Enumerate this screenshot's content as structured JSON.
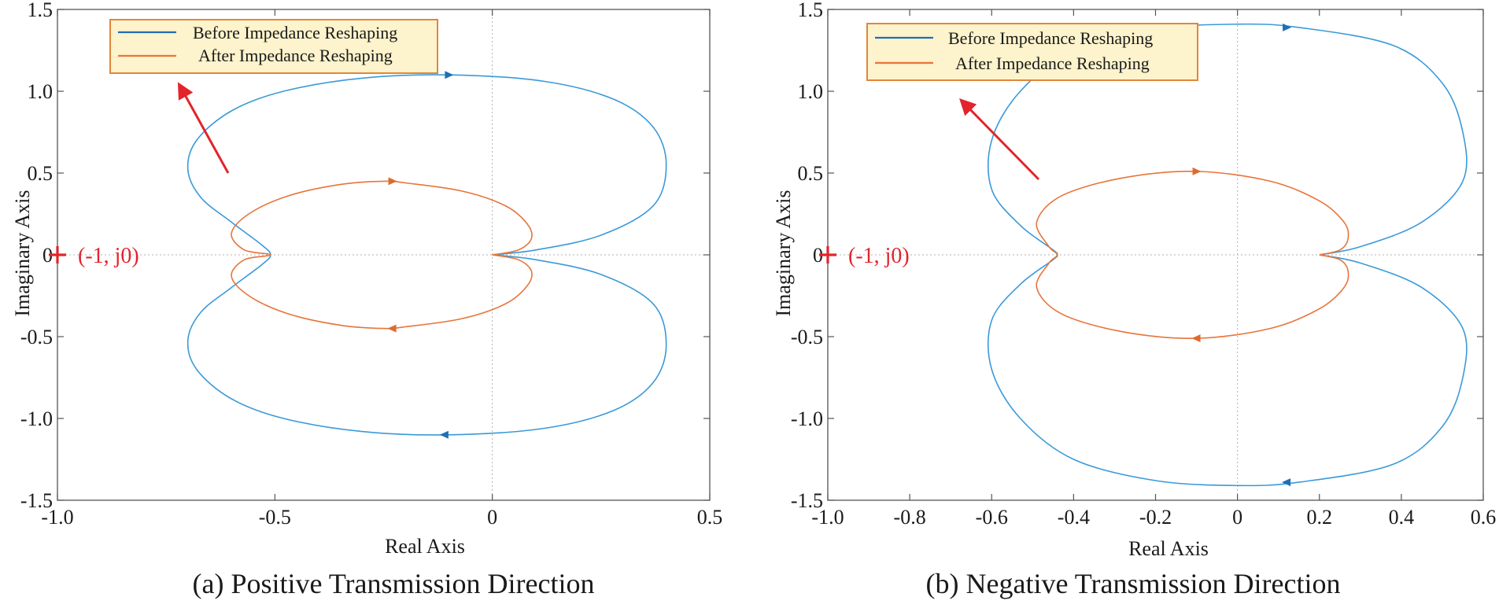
{
  "chart_data": [
    {
      "type": "line",
      "title": "(a) Positive Transmission Direction",
      "xlabel": "Real Axis",
      "ylabel": "Imaginary Axis",
      "xlim": [
        -1.0,
        0.5
      ],
      "ylim": [
        -1.5,
        1.5
      ],
      "xticks": [
        -1.0,
        -0.5,
        0,
        0.5
      ],
      "xtick_labels": [
        "-1.0",
        "-0.5",
        "0",
        "0.5"
      ],
      "yticks": [
        -1.5,
        -1.0,
        -0.5,
        0,
        0.5,
        1.0,
        1.5
      ],
      "ytick_labels": [
        "-1.5",
        "-1.0",
        "-0.5",
        "0",
        "0.5",
        "1.0",
        "1.5"
      ],
      "legend": [
        "Before Impedance Reshaping",
        "After Impedance Reshaping"
      ],
      "reference_point": {
        "x": -1,
        "y": 0,
        "label": "(-1, j0)"
      },
      "series": [
        {
          "name": "Before Impedance Reshaping",
          "color": "#3a9ad9",
          "points": [
            [
              0,
              0
            ],
            [
              0.1,
              0.03
            ],
            [
              0.25,
              0.12
            ],
            [
              0.37,
              0.3
            ],
            [
              0.4,
              0.55
            ],
            [
              0.37,
              0.78
            ],
            [
              0.28,
              0.95
            ],
            [
              0.12,
              1.06
            ],
            [
              -0.1,
              1.1
            ],
            [
              -0.3,
              1.08
            ],
            [
              -0.48,
              1.0
            ],
            [
              -0.6,
              0.88
            ],
            [
              -0.68,
              0.7
            ],
            [
              -0.7,
              0.52
            ],
            [
              -0.67,
              0.35
            ],
            [
              -0.6,
              0.2
            ],
            [
              -0.53,
              0.06
            ],
            [
              -0.51,
              0
            ],
            [
              -0.53,
              -0.06
            ],
            [
              -0.6,
              -0.2
            ],
            [
              -0.67,
              -0.35
            ],
            [
              -0.7,
              -0.52
            ],
            [
              -0.68,
              -0.7
            ],
            [
              -0.6,
              -0.88
            ],
            [
              -0.48,
              -1.0
            ],
            [
              -0.3,
              -1.08
            ],
            [
              -0.1,
              -1.1
            ],
            [
              0.12,
              -1.06
            ],
            [
              0.28,
              -0.95
            ],
            [
              0.37,
              -0.78
            ],
            [
              0.4,
              -0.55
            ],
            [
              0.37,
              -0.3
            ],
            [
              0.25,
              -0.12
            ],
            [
              0.1,
              -0.03
            ],
            [
              0,
              0
            ]
          ],
          "arrows": [
            {
              "x": -0.1,
              "y": 1.1
            },
            {
              "x": -0.11,
              "y": -1.1
            }
          ]
        },
        {
          "name": "After Impedance Reshaping",
          "color": "#e8743b",
          "points": [
            [
              0,
              0
            ],
            [
              0.06,
              0.03
            ],
            [
              0.09,
              0.1
            ],
            [
              0.08,
              0.19
            ],
            [
              0.03,
              0.3
            ],
            [
              -0.07,
              0.39
            ],
            [
              -0.2,
              0.44
            ],
            [
              -0.25,
              0.45
            ],
            [
              -0.35,
              0.43
            ],
            [
              -0.47,
              0.36
            ],
            [
              -0.56,
              0.25
            ],
            [
              -0.6,
              0.13
            ],
            [
              -0.57,
              0.03
            ],
            [
              -0.51,
              0
            ],
            [
              -0.57,
              -0.03
            ],
            [
              -0.6,
              -0.13
            ],
            [
              -0.56,
              -0.25
            ],
            [
              -0.47,
              -0.36
            ],
            [
              -0.35,
              -0.43
            ],
            [
              -0.25,
              -0.45
            ],
            [
              -0.2,
              -0.44
            ],
            [
              -0.07,
              -0.39
            ],
            [
              0.03,
              -0.3
            ],
            [
              0.08,
              -0.19
            ],
            [
              0.09,
              -0.1
            ],
            [
              0.06,
              -0.03
            ],
            [
              0,
              0
            ]
          ],
          "arrows": [
            {
              "x": -0.23,
              "y": 0.45
            },
            {
              "x": -0.23,
              "y": -0.45
            }
          ]
        }
      ]
    },
    {
      "type": "line",
      "title": "(b) Negative Transmission Direction",
      "xlabel": "Real Axis",
      "ylabel": "Imaginary Axis",
      "xlim": [
        -1.0,
        0.6
      ],
      "ylim": [
        -1.5,
        1.5
      ],
      "xticks": [
        -1.0,
        -0.8,
        -0.6,
        -0.4,
        -0.2,
        0,
        0.2,
        0.4,
        0.6
      ],
      "xtick_labels": [
        "-1.0",
        "-0.8",
        "-0.6",
        "-0.4",
        "-0.2",
        "0",
        "0.2",
        "0.4",
        "0.6"
      ],
      "yticks": [
        -1.5,
        -1.0,
        -0.5,
        0,
        0.5,
        1.0,
        1.5
      ],
      "ytick_labels": [
        "-1.5",
        "-1.0",
        "-0.5",
        "0",
        "0.5",
        "1.0",
        "1.5"
      ],
      "legend": [
        "Before Impedance Reshaping",
        "After Impedance Reshaping"
      ],
      "reference_point": {
        "x": -1,
        "y": 0,
        "label": "(-1, j0)"
      },
      "series": [
        {
          "name": "Before Impedance Reshaping",
          "color": "#3a9ad9",
          "points": [
            [
              0.2,
              0
            ],
            [
              0.3,
              0.05
            ],
            [
              0.45,
              0.2
            ],
            [
              0.55,
              0.45
            ],
            [
              0.55,
              0.75
            ],
            [
              0.5,
              1.05
            ],
            [
              0.38,
              1.28
            ],
            [
              0.15,
              1.39
            ],
            [
              0.0,
              1.41
            ],
            [
              -0.2,
              1.38
            ],
            [
              -0.4,
              1.25
            ],
            [
              -0.53,
              1.0
            ],
            [
              -0.6,
              0.7
            ],
            [
              -0.6,
              0.4
            ],
            [
              -0.53,
              0.18
            ],
            [
              -0.45,
              0.03
            ],
            [
              -0.44,
              0
            ],
            [
              -0.45,
              -0.03
            ],
            [
              -0.53,
              -0.18
            ],
            [
              -0.6,
              -0.4
            ],
            [
              -0.6,
              -0.7
            ],
            [
              -0.53,
              -1.0
            ],
            [
              -0.4,
              -1.25
            ],
            [
              -0.2,
              -1.38
            ],
            [
              0.0,
              -1.41
            ],
            [
              0.15,
              -1.39
            ],
            [
              0.38,
              -1.28
            ],
            [
              0.5,
              -1.05
            ],
            [
              0.55,
              -0.75
            ],
            [
              0.55,
              -0.45
            ],
            [
              0.45,
              -0.2
            ],
            [
              0.3,
              -0.05
            ],
            [
              0.2,
              0
            ]
          ],
          "arrows": [
            {
              "x": 0.12,
              "y": 1.39
            },
            {
              "x": 0.12,
              "y": -1.39
            }
          ]
        },
        {
          "name": "After Impedance Reshaping",
          "color": "#e8743b",
          "points": [
            [
              0.2,
              0
            ],
            [
              0.25,
              0.03
            ],
            [
              0.27,
              0.1
            ],
            [
              0.26,
              0.2
            ],
            [
              0.2,
              0.33
            ],
            [
              0.08,
              0.45
            ],
            [
              -0.1,
              0.51
            ],
            [
              -0.28,
              0.47
            ],
            [
              -0.43,
              0.36
            ],
            [
              -0.49,
              0.2
            ],
            [
              -0.46,
              0.05
            ],
            [
              -0.44,
              0
            ],
            [
              -0.46,
              -0.05
            ],
            [
              -0.49,
              -0.2
            ],
            [
              -0.43,
              -0.36
            ],
            [
              -0.28,
              -0.47
            ],
            [
              -0.1,
              -0.51
            ],
            [
              0.08,
              -0.45
            ],
            [
              0.2,
              -0.33
            ],
            [
              0.26,
              -0.2
            ],
            [
              0.27,
              -0.1
            ],
            [
              0.25,
              -0.03
            ],
            [
              0.2,
              0
            ]
          ],
          "arrows": [
            {
              "x": -0.1,
              "y": 0.51
            },
            {
              "x": -0.1,
              "y": -0.51
            }
          ]
        }
      ]
    }
  ]
}
